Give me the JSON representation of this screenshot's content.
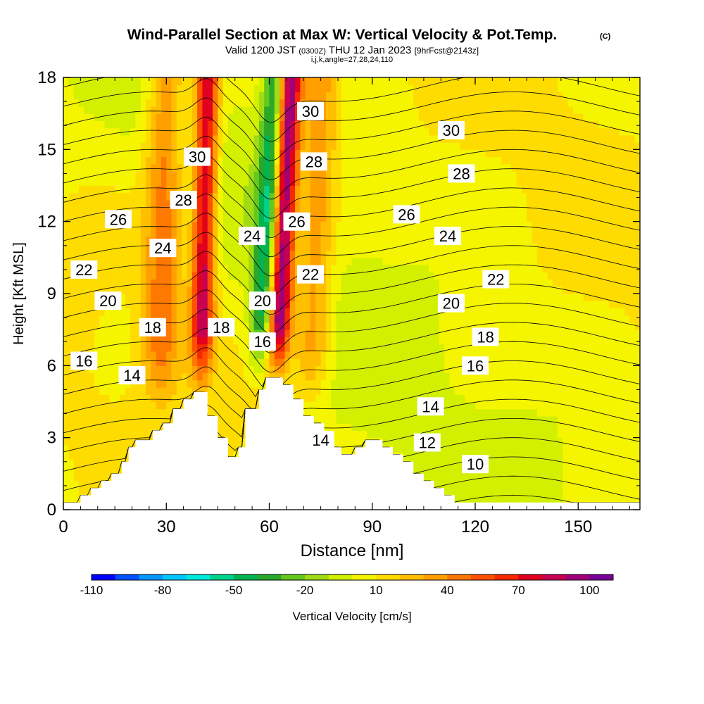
{
  "chart_data": {
    "type": "heatmap",
    "title": "Wind-Parallel Section at Max W: Vertical Velocity & Pot.Temp.",
    "copyright_mark": "(C)",
    "subtitle": {
      "valid": "Valid 1200 JST",
      "utc": "(0300Z)",
      "date": "THU 12 Jan 2023",
      "forecast": "[9hrFcst@2143z]"
    },
    "index_line": "i,j,k,angle=27,28,24,110",
    "xlabel": "Distance [nm]",
    "ylabel": "Height [Kft MSL]",
    "xlim": [
      0,
      168
    ],
    "ylim": [
      0,
      18
    ],
    "xticks": [
      0,
      30,
      60,
      90,
      120,
      150
    ],
    "yticks": [
      0,
      3,
      6,
      9,
      12,
      15,
      18
    ],
    "colorbar": {
      "label": "Vertical Velocity [cm/s]",
      "range": [
        -110,
        110
      ],
      "tick_values": [
        -110,
        -80,
        -50,
        -20,
        10,
        40,
        70,
        100
      ],
      "tick_labels": [
        "-110",
        "-80",
        "-50",
        "-20",
        "10",
        "40",
        "70",
        "100"
      ],
      "colors": [
        "#0000ff",
        "#0050ff",
        "#0096ff",
        "#00c8ff",
        "#00ebdc",
        "#00d28c",
        "#00b450",
        "#2ba82a",
        "#64c81e",
        "#a0dc14",
        "#d2f000",
        "#f5f500",
        "#ffdc00",
        "#ffbe00",
        "#ffa000",
        "#ff7800",
        "#ff5000",
        "#f52800",
        "#e1001e",
        "#c80050",
        "#a00078",
        "#780096"
      ]
    },
    "terrain": [
      [
        0,
        0.3
      ],
      [
        5,
        0.3
      ],
      [
        5,
        0.6
      ],
      [
        8,
        0.6
      ],
      [
        8,
        0.9
      ],
      [
        11,
        0.9
      ],
      [
        11,
        1.2
      ],
      [
        14,
        1.2
      ],
      [
        14,
        1.5
      ],
      [
        17,
        1.5
      ],
      [
        17,
        2.0
      ],
      [
        19,
        2.0
      ],
      [
        19,
        2.6
      ],
      [
        21,
        2.6
      ],
      [
        21,
        2.9
      ],
      [
        26,
        2.9
      ],
      [
        26,
        3.3
      ],
      [
        29,
        3.3
      ],
      [
        29,
        3.6
      ],
      [
        32,
        3.6
      ],
      [
        32,
        4.2
      ],
      [
        35,
        4.2
      ],
      [
        35,
        4.6
      ],
      [
        38,
        4.6
      ],
      [
        38,
        4.9
      ],
      [
        42,
        4.9
      ],
      [
        42,
        3.9
      ],
      [
        45,
        3.9
      ],
      [
        45,
        3.0
      ],
      [
        48,
        3.0
      ],
      [
        48,
        2.2
      ],
      [
        51,
        2.2
      ],
      [
        51,
        2.6
      ],
      [
        53,
        2.6
      ],
      [
        53,
        4.2
      ],
      [
        57,
        4.2
      ],
      [
        57,
        5.0
      ],
      [
        59,
        5.0
      ],
      [
        59,
        5.5
      ],
      [
        64,
        5.5
      ],
      [
        64,
        5.2
      ],
      [
        67,
        5.2
      ],
      [
        67,
        4.6
      ],
      [
        70,
        4.6
      ],
      [
        70,
        3.9
      ],
      [
        73,
        3.9
      ],
      [
        73,
        3.6
      ],
      [
        76,
        3.6
      ],
      [
        76,
        2.9
      ],
      [
        79,
        2.9
      ],
      [
        79,
        2.6
      ],
      [
        81,
        2.6
      ],
      [
        81,
        2.3
      ],
      [
        85,
        2.3
      ],
      [
        85,
        2.6
      ],
      [
        88,
        2.6
      ],
      [
        88,
        2.9
      ],
      [
        93,
        2.9
      ],
      [
        93,
        2.6
      ],
      [
        96,
        2.6
      ],
      [
        96,
        2.3
      ],
      [
        99,
        2.3
      ],
      [
        99,
        2.0
      ],
      [
        102,
        2.0
      ],
      [
        102,
        1.5
      ],
      [
        105,
        1.5
      ],
      [
        105,
        1.2
      ],
      [
        108,
        1.2
      ],
      [
        108,
        0.9
      ],
      [
        111,
        0.9
      ],
      [
        111,
        0.6
      ],
      [
        114,
        0.6
      ],
      [
        114,
        0.3
      ],
      [
        168,
        0.3
      ]
    ],
    "updrafts": [
      {
        "x_base": 40,
        "x_top": 42,
        "h_base": 4.8,
        "peak_cms": 80,
        "width_nm": 5
      },
      {
        "x_base": 62,
        "x_top": 66,
        "h_base": 5.2,
        "peak_cms": 105,
        "width_nm": 5
      },
      {
        "x_base": 57,
        "x_top": 62,
        "h_base": 5.2,
        "peak_cms": -55,
        "width_nm": 5
      },
      {
        "x_base": 28,
        "x_top": 30,
        "h_base": 4.0,
        "peak_cms": 40,
        "width_nm": 8
      },
      {
        "x_base": 72,
        "x_top": 75,
        "h_base": 4.0,
        "peak_cms": 35,
        "width_nm": 8
      }
    ],
    "theta_contours": [
      {
        "value": 10,
        "label": "10",
        "label_pos": [
          120,
          1.9
        ]
      },
      {
        "value": 12,
        "label": "12",
        "label_pos": [
          106,
          2.8
        ]
      },
      {
        "value": 14,
        "label": "14",
        "label_pos": [
          20,
          5.6
        ]
      },
      {
        "value": 14,
        "label": "14",
        "label_pos": [
          107,
          4.3
        ]
      },
      {
        "value": 14,
        "label": "14",
        "label_pos": [
          75,
          2.9
        ]
      },
      {
        "value": 16,
        "label": "16",
        "label_pos": [
          6,
          6.2
        ]
      },
      {
        "value": 16,
        "label": "16",
        "label_pos": [
          58,
          7.0
        ]
      },
      {
        "value": 16,
        "label": "16",
        "label_pos": [
          120,
          6.0
        ]
      },
      {
        "value": 18,
        "label": "18",
        "label_pos": [
          26,
          7.6
        ]
      },
      {
        "value": 18,
        "label": "18",
        "label_pos": [
          46,
          7.6
        ]
      },
      {
        "value": 18,
        "label": "18",
        "label_pos": [
          123,
          7.2
        ]
      },
      {
        "value": 20,
        "label": "20",
        "label_pos": [
          13,
          8.7
        ]
      },
      {
        "value": 20,
        "label": "20",
        "label_pos": [
          58,
          8.7
        ]
      },
      {
        "value": 20,
        "label": "20",
        "label_pos": [
          113,
          8.6
        ]
      },
      {
        "value": 22,
        "label": "22",
        "label_pos": [
          6,
          10.0
        ]
      },
      {
        "value": 22,
        "label": "22",
        "label_pos": [
          72,
          9.8
        ]
      },
      {
        "value": 22,
        "label": "22",
        "label_pos": [
          126,
          9.6
        ]
      },
      {
        "value": 24,
        "label": "24",
        "label_pos": [
          29,
          10.9
        ]
      },
      {
        "value": 24,
        "label": "24",
        "label_pos": [
          55,
          11.4
        ]
      },
      {
        "value": 24,
        "label": "24",
        "label_pos": [
          112,
          11.4
        ]
      },
      {
        "value": 26,
        "label": "26",
        "label_pos": [
          16,
          12.1
        ]
      },
      {
        "value": 26,
        "label": "26",
        "label_pos": [
          68,
          12.0
        ]
      },
      {
        "value": 26,
        "label": "26",
        "label_pos": [
          100,
          12.3
        ]
      },
      {
        "value": 28,
        "label": "28",
        "label_pos": [
          35,
          12.9
        ]
      },
      {
        "value": 28,
        "label": "28",
        "label_pos": [
          73,
          14.5
        ]
      },
      {
        "value": 28,
        "label": "28",
        "label_pos": [
          116,
          14.0
        ]
      },
      {
        "value": 30,
        "label": "30",
        "label_pos": [
          39,
          14.7
        ]
      },
      {
        "value": 30,
        "label": "30",
        "label_pos": [
          72,
          16.6
        ]
      },
      {
        "value": 30,
        "label": "30",
        "label_pos": [
          113,
          15.8
        ]
      }
    ]
  }
}
